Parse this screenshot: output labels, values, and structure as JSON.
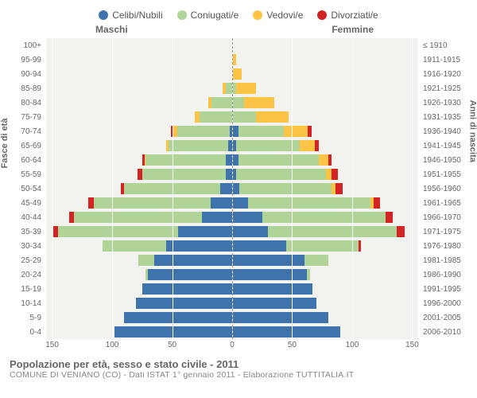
{
  "legend": [
    {
      "label": "Celibi/Nubili",
      "color": "#3f73ab"
    },
    {
      "label": "Coniugati/e",
      "color": "#b0d397"
    },
    {
      "label": "Vedovi/e",
      "color": "#fcc347"
    },
    {
      "label": "Divorziati/e",
      "color": "#d42323"
    }
  ],
  "column_headers": {
    "male": "Maschi",
    "female": "Femmine"
  },
  "axis_titles": {
    "left": "Fasce di età",
    "right": "Anni di nascita"
  },
  "x_axis": {
    "max": 155,
    "ticks": [
      150,
      100,
      50,
      0,
      50,
      100,
      150
    ]
  },
  "footer": {
    "title": "Popolazione per età, sesso e stato civile - 2011",
    "subtitle": "COMUNE DI VENIANO (CO) - Dati ISTAT 1° gennaio 2011 - Elaborazione TUTTITALIA.IT"
  },
  "colors": {
    "grid_bg": "#f2f2ee",
    "grid_line": "#ffffff",
    "label": "#666666"
  },
  "rows": [
    {
      "age": "100+",
      "birth": "≤ 1910",
      "m": [
        0,
        0,
        0,
        0
      ],
      "f": [
        0,
        0,
        0,
        0
      ]
    },
    {
      "age": "95-99",
      "birth": "1911-1915",
      "m": [
        0,
        0,
        0,
        0
      ],
      "f": [
        0,
        0,
        3,
        0
      ]
    },
    {
      "age": "90-94",
      "birth": "1916-1920",
      "m": [
        0,
        0,
        0,
        0
      ],
      "f": [
        0,
        0,
        8,
        0
      ]
    },
    {
      "age": "85-89",
      "birth": "1921-1925",
      "m": [
        0,
        5,
        3,
        0
      ],
      "f": [
        0,
        3,
        17,
        0
      ]
    },
    {
      "age": "80-84",
      "birth": "1926-1930",
      "m": [
        0,
        17,
        3,
        0
      ],
      "f": [
        0,
        10,
        25,
        0
      ]
    },
    {
      "age": "75-79",
      "birth": "1931-1935",
      "m": [
        0,
        27,
        4,
        0
      ],
      "f": [
        0,
        20,
        27,
        0
      ]
    },
    {
      "age": "70-74",
      "birth": "1936-1940",
      "m": [
        2,
        44,
        3,
        2
      ],
      "f": [
        5,
        38,
        20,
        3
      ]
    },
    {
      "age": "65-69",
      "birth": "1941-1945",
      "m": [
        3,
        50,
        2,
        0
      ],
      "f": [
        3,
        53,
        13,
        3
      ]
    },
    {
      "age": "60-64",
      "birth": "1946-1950",
      "m": [
        5,
        67,
        1,
        2
      ],
      "f": [
        5,
        67,
        8,
        3
      ]
    },
    {
      "age": "55-59",
      "birth": "1951-1955",
      "m": [
        5,
        70,
        0,
        4
      ],
      "f": [
        3,
        75,
        5,
        5
      ]
    },
    {
      "age": "50-54",
      "birth": "1956-1960",
      "m": [
        10,
        80,
        0,
        3
      ],
      "f": [
        6,
        77,
        3,
        6
      ]
    },
    {
      "age": "45-49",
      "birth": "1961-1965",
      "m": [
        18,
        97,
        0,
        5
      ],
      "f": [
        13,
        102,
        3,
        5
      ]
    },
    {
      "age": "40-44",
      "birth": "1966-1970",
      "m": [
        25,
        107,
        0,
        4
      ],
      "f": [
        25,
        103,
        0,
        6
      ]
    },
    {
      "age": "35-39",
      "birth": "1971-1975",
      "m": [
        45,
        100,
        0,
        5
      ],
      "f": [
        30,
        107,
        0,
        7
      ]
    },
    {
      "age": "30-34",
      "birth": "1976-1980",
      "m": [
        55,
        53,
        0,
        0
      ],
      "f": [
        45,
        60,
        0,
        2
      ]
    },
    {
      "age": "25-29",
      "birth": "1981-1985",
      "m": [
        65,
        13,
        0,
        0
      ],
      "f": [
        60,
        20,
        0,
        0
      ]
    },
    {
      "age": "20-24",
      "birth": "1986-1990",
      "m": [
        70,
        2,
        0,
        0
      ],
      "f": [
        62,
        3,
        0,
        0
      ]
    },
    {
      "age": "15-19",
      "birth": "1991-1995",
      "m": [
        75,
        0,
        0,
        0
      ],
      "f": [
        67,
        0,
        0,
        0
      ]
    },
    {
      "age": "10-14",
      "birth": "1996-2000",
      "m": [
        80,
        0,
        0,
        0
      ],
      "f": [
        70,
        0,
        0,
        0
      ]
    },
    {
      "age": "5-9",
      "birth": "2001-2005",
      "m": [
        90,
        0,
        0,
        0
      ],
      "f": [
        80,
        0,
        0,
        0
      ]
    },
    {
      "age": "0-4",
      "birth": "2006-2010",
      "m": [
        98,
        0,
        0,
        0
      ],
      "f": [
        90,
        0,
        0,
        0
      ]
    }
  ]
}
